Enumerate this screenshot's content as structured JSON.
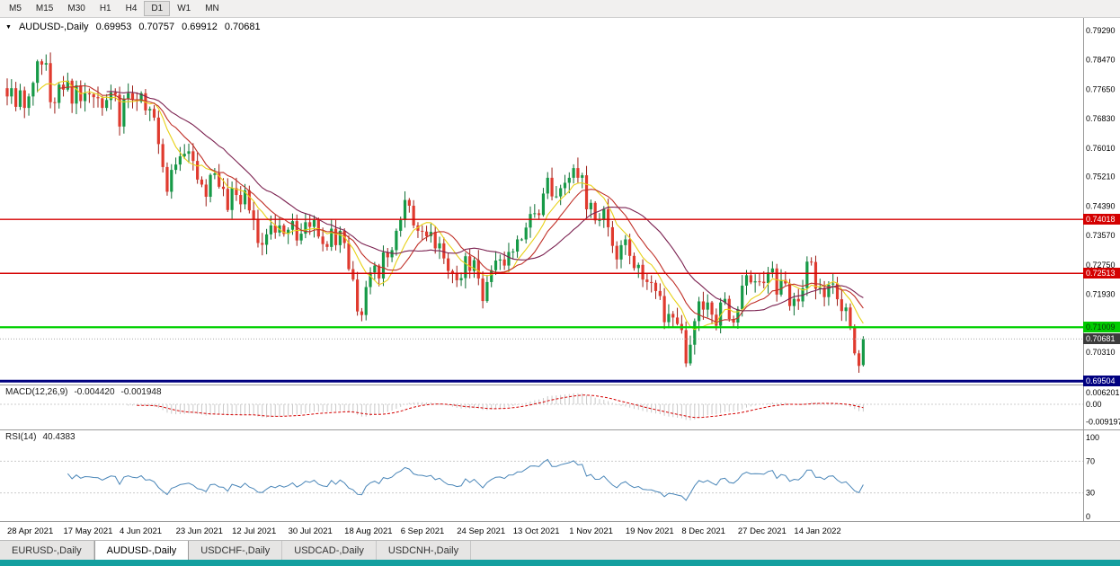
{
  "toolbar": {
    "timeframes": [
      "M5",
      "M15",
      "M30",
      "H1",
      "H4",
      "D1",
      "W1",
      "MN"
    ],
    "active": "D1"
  },
  "chart_header": {
    "symbol": "AUDUSD-,Daily",
    "open": "0.69953",
    "high": "0.70757",
    "low": "0.69912",
    "close": "0.70681"
  },
  "price_axis": {
    "ticks": [
      "0.79290",
      "0.78470",
      "0.77650",
      "0.76830",
      "0.76010",
      "0.75210",
      "0.74390",
      "0.73570",
      "0.72750",
      "0.71930",
      "0.70310"
    ]
  },
  "price_badges": [
    {
      "label": "0.74018",
      "price": 0.74018,
      "bg": "#d40000",
      "fg": "#ffffff"
    },
    {
      "label": "0.72513",
      "price": 0.72513,
      "bg": "#d40000",
      "fg": "#ffffff"
    },
    {
      "label": "0.71009",
      "price": 0.71009,
      "bg": "#00cc00",
      "fg": "#073807"
    },
    {
      "label": "0.70681",
      "price": 0.70681,
      "bg": "#3c3c3c",
      "fg": "#ffffff"
    },
    {
      "label": "0.69504",
      "price": 0.69504,
      "bg": "#000080",
      "fg": "#ffffff"
    }
  ],
  "levels": [
    {
      "price": 0.74018,
      "color": "#d40000",
      "width": 1.4,
      "dash": ""
    },
    {
      "price": 0.72513,
      "color": "#d40000",
      "width": 1.4,
      "dash": ""
    },
    {
      "price": 0.71009,
      "color": "#00d000",
      "width": 2.2,
      "dash": ""
    },
    {
      "price": 0.69504,
      "color": "#000080",
      "width": 3,
      "dash": ""
    },
    {
      "price": 0.70681,
      "color": "#a8a8a8",
      "width": 1,
      "dash": "1,2"
    }
  ],
  "indicators": {
    "macd": {
      "label": "MACD(12,26,9)",
      "value1": "-0.004420",
      "value2": "-0.001948",
      "axis": [
        {
          "label": "0.006201",
          "v": 0.006201
        },
        {
          "label": "0.00",
          "v": 0
        },
        {
          "label": "-0.009197",
          "v": -0.009197
        }
      ]
    },
    "rsi": {
      "label": "RSI(14)",
      "value": "40.4383",
      "axis": [
        {
          "label": "100",
          "v": 100
        },
        {
          "label": "70",
          "v": 70
        },
        {
          "label": "30",
          "v": 30
        },
        {
          "label": "0",
          "v": 0
        }
      ],
      "level_lines": [
        70,
        30
      ]
    }
  },
  "x_axis": {
    "dates": [
      "28 Apr 2021",
      "17 May 2021",
      "4 Jun 2021",
      "23 Jun 2021",
      "12 Jul 2021",
      "30 Jul 2021",
      "18 Aug 2021",
      "6 Sep 2021",
      "24 Sep 2021",
      "13 Oct 2021",
      "1 Nov 2021",
      "19 Nov 2021",
      "8 Dec 2021",
      "27 Dec 2021",
      "14 Jan 2022"
    ],
    "bars_per_label": 13
  },
  "tabs": [
    {
      "label": "EURUSD-,Daily",
      "active": false
    },
    {
      "label": "AUDUSD-,Daily",
      "active": true
    },
    {
      "label": "USDCHF-,Daily",
      "active": false
    },
    {
      "label": "USDCAD-,Daily",
      "active": false
    },
    {
      "label": "USDCNH-,Daily",
      "active": false
    }
  ],
  "colors": {
    "up_body": "#169a47",
    "down_body": "#e03a2e",
    "up_wick": "#0c6e33",
    "down_wick": "#9c1d16",
    "ma_fast": "#e8d117",
    "ma_mid": "#c03028",
    "ma_slow": "#7b2150",
    "macd_hist": "#c9c9c9",
    "macd_signal": "#d40000",
    "rsi_line": "#4a86b8",
    "axis_line": "#9a9a9a",
    "grid_dotted": "#cccccc",
    "teal_bar": "#149f9f",
    "text": "#000000"
  },
  "chart_data": {
    "type": "candlestick",
    "title": "AUDUSD-,Daily",
    "symbol": "AUDUSD",
    "timeframe": "Daily",
    "ohlc_last": {
      "open": 0.69953,
      "high": 0.70757,
      "low": 0.69912,
      "close": 0.70681
    },
    "first_open": 0.7768,
    "view": {
      "top": 0.7959,
      "bottom": 0.6941
    },
    "support_resistance": [
      0.74018,
      0.72513,
      0.71009,
      0.69504
    ],
    "moving_averages": [
      {
        "period": 8,
        "color_key": "ma_fast"
      },
      {
        "period": 13,
        "color_key": "ma_mid"
      },
      {
        "period": 24,
        "color_key": "ma_slow"
      }
    ],
    "macd_params": [
      12,
      26,
      9
    ],
    "rsi_period": 14,
    "closes": [
      0.7745,
      0.7768,
      0.7716,
      0.7762,
      0.7713,
      0.7745,
      0.7783,
      0.7843,
      0.7834,
      0.7838,
      0.7729,
      0.7727,
      0.7778,
      0.7764,
      0.7789,
      0.7725,
      0.7776,
      0.7732,
      0.7754,
      0.7751,
      0.7743,
      0.774,
      0.7713,
      0.7735,
      0.7756,
      0.775,
      0.7661,
      0.7739,
      0.7754,
      0.7737,
      0.7731,
      0.7754,
      0.7706,
      0.771,
      0.7686,
      0.7612,
      0.7548,
      0.7479,
      0.754,
      0.7555,
      0.7578,
      0.7585,
      0.7592,
      0.7565,
      0.7513,
      0.7499,
      0.7465,
      0.7526,
      0.753,
      0.7493,
      0.7487,
      0.7428,
      0.7489,
      0.747,
      0.7444,
      0.7483,
      0.7427,
      0.7401,
      0.7336,
      0.7331,
      0.736,
      0.7385,
      0.7365,
      0.7385,
      0.7361,
      0.7373,
      0.7397,
      0.7343,
      0.7362,
      0.7394,
      0.7381,
      0.74,
      0.7354,
      0.7333,
      0.7325,
      0.7376,
      0.733,
      0.737,
      0.7336,
      0.7263,
      0.7234,
      0.7145,
      0.7135,
      0.7213,
      0.7254,
      0.7273,
      0.7237,
      0.731,
      0.7296,
      0.7316,
      0.737,
      0.74,
      0.7456,
      0.744,
      0.7385,
      0.737,
      0.7368,
      0.7355,
      0.7367,
      0.7321,
      0.7335,
      0.7293,
      0.7258,
      0.7253,
      0.7232,
      0.7238,
      0.7299,
      0.7258,
      0.7288,
      0.7237,
      0.7174,
      0.7227,
      0.726,
      0.7287,
      0.729,
      0.7273,
      0.7311,
      0.7312,
      0.7346,
      0.7346,
      0.7379,
      0.7417,
      0.7419,
      0.7414,
      0.7474,
      0.7518,
      0.7466,
      0.7466,
      0.7489,
      0.7504,
      0.7518,
      0.7545,
      0.7518,
      0.7525,
      0.743,
      0.7448,
      0.7399,
      0.74,
      0.743,
      0.738,
      0.7328,
      0.729,
      0.733,
      0.7346,
      0.73,
      0.7266,
      0.7275,
      0.7234,
      0.7227,
      0.7225,
      0.7202,
      0.7188,
      0.7115,
      0.7138,
      0.7128,
      0.711,
      0.7093,
      0.7,
      0.7052,
      0.7118,
      0.7173,
      0.715,
      0.717,
      0.7136,
      0.7105,
      0.717,
      0.718,
      0.7124,
      0.7114,
      0.7151,
      0.7217,
      0.7246,
      0.7226,
      0.7229,
      0.7228,
      0.7224,
      0.7254,
      0.7265,
      0.7192,
      0.7233,
      0.7223,
      0.716,
      0.718,
      0.7173,
      0.721,
      0.7284,
      0.7283,
      0.7208,
      0.7211,
      0.7185,
      0.722,
      0.7223,
      0.7179,
      0.7146,
      0.7156,
      0.71,
      0.7028,
      0.6993,
      0.7068
    ]
  }
}
